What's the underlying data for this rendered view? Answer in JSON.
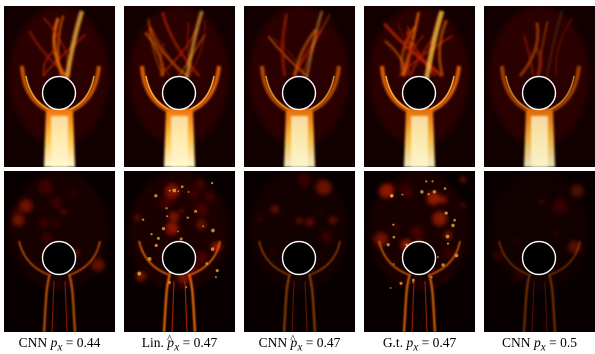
{
  "figure": {
    "captions": [
      {
        "method": "CNN",
        "symbol": "p",
        "hat": false,
        "subscript": "x",
        "relation": "=",
        "value": "0.44"
      },
      {
        "method": "Lin.",
        "symbol": "p",
        "hat": true,
        "subscript": "x",
        "relation": "=",
        "value": "0.47"
      },
      {
        "method": "CNN",
        "symbol": "p",
        "hat": true,
        "subscript": "x",
        "relation": "=",
        "value": "0.47"
      },
      {
        "method": "G.t.",
        "symbol": "p",
        "hat": false,
        "subscript": "x",
        "relation": "=",
        "value": "0.47"
      },
      {
        "method": "CNN",
        "symbol": "p",
        "hat": false,
        "subscript": "x",
        "relation": "=",
        "value": "0.5"
      }
    ],
    "colormap": [
      "#000000",
      "#5a0000",
      "#b02000",
      "#f06a00",
      "#ffc040",
      "#fff8d0"
    ],
    "obstacle_outline": "#ffffff"
  }
}
